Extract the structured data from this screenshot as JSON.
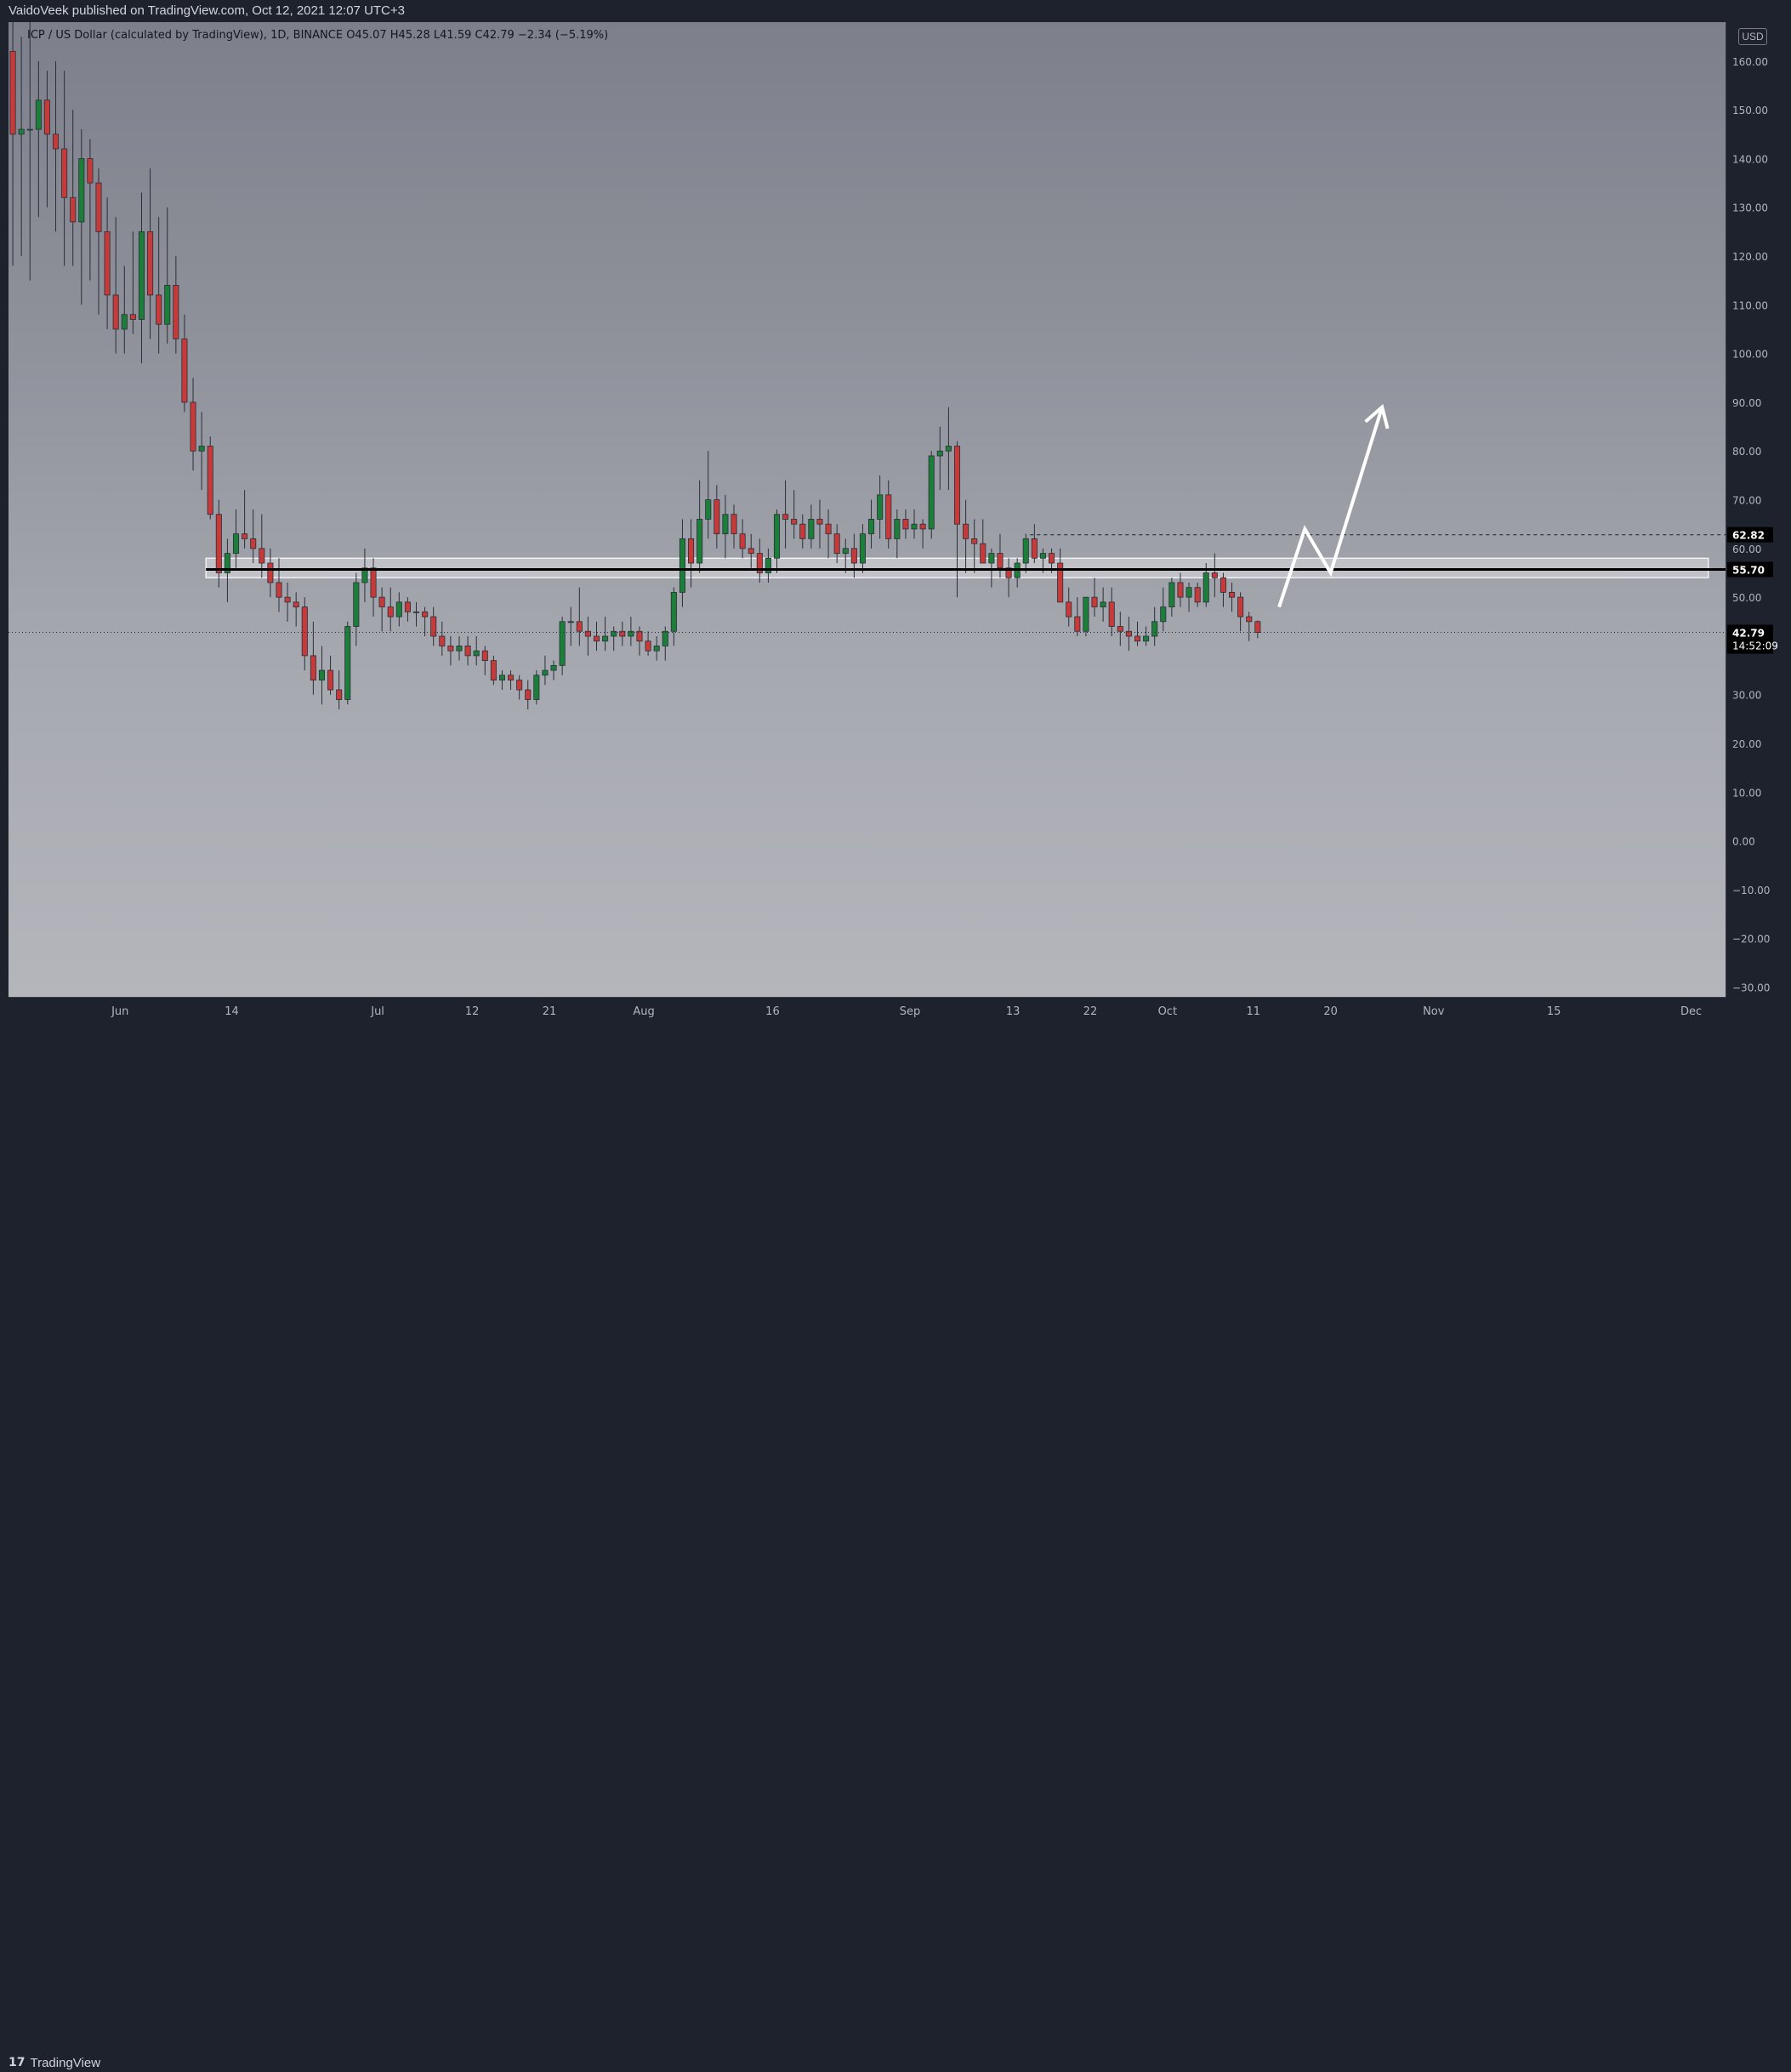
{
  "header": {
    "publisher_line": "VaidoVeek published on TradingView.com, Oct 12, 2021 12:07 UTC+3"
  },
  "symbol": {
    "info_line": "ICP / US Dollar (calculated by TradingView), 1D, BINANCE  O45.07  H45.28  L41.59  C42.79  −2.34 (−5.19%)"
  },
  "axis": {
    "currency": "USD"
  },
  "footer": {
    "brand": "TradingView"
  },
  "colors": {
    "up": "#1b7f3a",
    "down": "#c63a3a",
    "wick": "#2a2e39",
    "level_line": "#000000",
    "arrow": "#ffffff"
  },
  "chart_data": {
    "type": "candlestick",
    "title": "ICP / US Dollar (calculated by TradingView), 1D, BINANCE",
    "ylim": [
      -32,
      168
    ],
    "y_ticks": [
      160,
      150,
      140,
      130,
      120,
      110,
      100,
      90,
      80,
      70,
      60,
      50,
      40,
      30,
      20,
      10,
      0,
      -10,
      -20,
      -30
    ],
    "y_tick_labels": [
      "160.00",
      "150.00",
      "140.00",
      "130.00",
      "120.00",
      "110.00",
      "100.00",
      "90.00",
      "80.00",
      "70.00",
      "60.00",
      "50.00",
      "40.00",
      "30.00",
      "20.00",
      "10.00",
      "0.00",
      "−10.00",
      "−20.00",
      "−30.00"
    ],
    "x_start": "2021-05-19",
    "x_end": "2021-12-05",
    "x_tick_labels": [
      {
        "date": "2021-06-01",
        "label": "Jun"
      },
      {
        "date": "2021-06-14",
        "label": "14"
      },
      {
        "date": "2021-07-01",
        "label": "Jul"
      },
      {
        "date": "2021-07-12",
        "label": "12"
      },
      {
        "date": "2021-07-21",
        "label": "21"
      },
      {
        "date": "2021-08-01",
        "label": "Aug"
      },
      {
        "date": "2021-08-16",
        "label": "16"
      },
      {
        "date": "2021-09-01",
        "label": "Sep"
      },
      {
        "date": "2021-09-13",
        "label": "13"
      },
      {
        "date": "2021-09-22",
        "label": "22"
      },
      {
        "date": "2021-10-01",
        "label": "Oct"
      },
      {
        "date": "2021-10-11",
        "label": "11"
      },
      {
        "date": "2021-10-20",
        "label": "20"
      },
      {
        "date": "2021-11-01",
        "label": "Nov"
      },
      {
        "date": "2021-11-15",
        "label": "15"
      },
      {
        "date": "2021-12-01",
        "label": "Dec"
      }
    ],
    "first_candle_date": "2021-05-19",
    "candles": [
      [
        162,
        168,
        118,
        145
      ],
      [
        145,
        165,
        120,
        146
      ],
      [
        146,
        168,
        115,
        146
      ],
      [
        146,
        160,
        128,
        152
      ],
      [
        152,
        158,
        130,
        145
      ],
      [
        145,
        160,
        125,
        142
      ],
      [
        142,
        158,
        118,
        132
      ],
      [
        132,
        150,
        118,
        127
      ],
      [
        127,
        146,
        110,
        140
      ],
      [
        140,
        144,
        115,
        135
      ],
      [
        135,
        138,
        108,
        125
      ],
      [
        125,
        132,
        105,
        112
      ],
      [
        112,
        128,
        100,
        105
      ],
      [
        105,
        118,
        100,
        108
      ],
      [
        108,
        125,
        104,
        107
      ],
      [
        107,
        133,
        98,
        125
      ],
      [
        125,
        138,
        103,
        112
      ],
      [
        112,
        128,
        100,
        106
      ],
      [
        106,
        130,
        102,
        114
      ],
      [
        114,
        120,
        100,
        103
      ],
      [
        103,
        108,
        88,
        90
      ],
      [
        90,
        95,
        76,
        80
      ],
      [
        80,
        88,
        72,
        81
      ],
      [
        81,
        83,
        66,
        67
      ],
      [
        67,
        70,
        52,
        55
      ],
      [
        55,
        62,
        49,
        59
      ],
      [
        59,
        68,
        56,
        63
      ],
      [
        63,
        72,
        60,
        62
      ],
      [
        62,
        68,
        57,
        60
      ],
      [
        60,
        67,
        54,
        57
      ],
      [
        57,
        60,
        50,
        53
      ],
      [
        53,
        58,
        47,
        50
      ],
      [
        50,
        53,
        45,
        49
      ],
      [
        49,
        51,
        44,
        48
      ],
      [
        48,
        50,
        35,
        38
      ],
      [
        38,
        45,
        30,
        33
      ],
      [
        33,
        40,
        28,
        35
      ],
      [
        35,
        38,
        30,
        31
      ],
      [
        31,
        35,
        27,
        29
      ],
      [
        29,
        45,
        28,
        44
      ],
      [
        44,
        55,
        40,
        53
      ],
      [
        53,
        60,
        49,
        56
      ],
      [
        56,
        58,
        46,
        50
      ],
      [
        50,
        52,
        43,
        48
      ],
      [
        48,
        52,
        43,
        46
      ],
      [
        46,
        51,
        44,
        49
      ],
      [
        49,
        50,
        45,
        47
      ],
      [
        47,
        49,
        44,
        47
      ],
      [
        47,
        48,
        42,
        46
      ],
      [
        46,
        48,
        40,
        42
      ],
      [
        42,
        45,
        38,
        40
      ],
      [
        40,
        42,
        36,
        39
      ],
      [
        39,
        42,
        37,
        40
      ],
      [
        40,
        42,
        36,
        38
      ],
      [
        38,
        42,
        36,
        39
      ],
      [
        39,
        40,
        34,
        37
      ],
      [
        37,
        38,
        32,
        33
      ],
      [
        33,
        35,
        31,
        34
      ],
      [
        34,
        35,
        31,
        33
      ],
      [
        33,
        34,
        29,
        31
      ],
      [
        31,
        33,
        27,
        29
      ],
      [
        29,
        35,
        28,
        34
      ],
      [
        34,
        38,
        32,
        35
      ],
      [
        35,
        37,
        33,
        36
      ],
      [
        36,
        46,
        34,
        45
      ],
      [
        45,
        48,
        40,
        45
      ],
      [
        45,
        52,
        40,
        43
      ],
      [
        43,
        46,
        38,
        42
      ],
      [
        42,
        45,
        39,
        41
      ],
      [
        41,
        46,
        39,
        42
      ],
      [
        42,
        44,
        39,
        43
      ],
      [
        43,
        45,
        40,
        42
      ],
      [
        42,
        46,
        40,
        43
      ],
      [
        43,
        44,
        38,
        41
      ],
      [
        41,
        43,
        38,
        39
      ],
      [
        39,
        42,
        37,
        40
      ],
      [
        40,
        44,
        37,
        43
      ],
      [
        43,
        52,
        40,
        51
      ],
      [
        51,
        66,
        48,
        62
      ],
      [
        62,
        66,
        52,
        57
      ],
      [
        57,
        74,
        55,
        66
      ],
      [
        66,
        80,
        62,
        70
      ],
      [
        70,
        73,
        60,
        63
      ],
      [
        63,
        71,
        58,
        67
      ],
      [
        67,
        69,
        60,
        63
      ],
      [
        63,
        66,
        58,
        60
      ],
      [
        60,
        63,
        56,
        59
      ],
      [
        59,
        62,
        53,
        55
      ],
      [
        55,
        60,
        53,
        58
      ],
      [
        58,
        68,
        55,
        67
      ],
      [
        67,
        74,
        60,
        66
      ],
      [
        66,
        72,
        62,
        65
      ],
      [
        65,
        67,
        60,
        62
      ],
      [
        62,
        69,
        60,
        66
      ],
      [
        66,
        70,
        60,
        65
      ],
      [
        65,
        68,
        58,
        63
      ],
      [
        63,
        65,
        57,
        59
      ],
      [
        59,
        62,
        55,
        60
      ],
      [
        60,
        63,
        54,
        57
      ],
      [
        57,
        65,
        55,
        63
      ],
      [
        63,
        70,
        60,
        66
      ],
      [
        66,
        75,
        62,
        71
      ],
      [
        71,
        74,
        60,
        62
      ],
      [
        62,
        68,
        58,
        66
      ],
      [
        66,
        68,
        62,
        64
      ],
      [
        64,
        68,
        62,
        65
      ],
      [
        65,
        66,
        60,
        64
      ],
      [
        64,
        80,
        62,
        79
      ],
      [
        79,
        85,
        72,
        80
      ],
      [
        80,
        89,
        72,
        81
      ],
      [
        81,
        82,
        50,
        65
      ],
      [
        65,
        70,
        55,
        62
      ],
      [
        62,
        66,
        55,
        61
      ],
      [
        61,
        66,
        57,
        57
      ],
      [
        57,
        60,
        52,
        59
      ],
      [
        59,
        63,
        54,
        56
      ],
      [
        56,
        58,
        50,
        54
      ],
      [
        54,
        58,
        52,
        57
      ],
      [
        57,
        63,
        55,
        62
      ],
      [
        62,
        65,
        57,
        58
      ],
      [
        58,
        60,
        55,
        59
      ],
      [
        59,
        60,
        55,
        57
      ],
      [
        57,
        60,
        50,
        49
      ],
      [
        49,
        52,
        44,
        46
      ],
      [
        46,
        50,
        42,
        43
      ],
      [
        43,
        50,
        42,
        50
      ],
      [
        50,
        54,
        46,
        48
      ],
      [
        48,
        52,
        45,
        49
      ],
      [
        49,
        52,
        42,
        44
      ],
      [
        44,
        47,
        40,
        43
      ],
      [
        43,
        46,
        39,
        42
      ],
      [
        42,
        45,
        40,
        41
      ],
      [
        41,
        44,
        40,
        42
      ],
      [
        42,
        48,
        40,
        45
      ],
      [
        45,
        52,
        43,
        48
      ],
      [
        48,
        54,
        46,
        53
      ],
      [
        53,
        55,
        48,
        50
      ],
      [
        50,
        53,
        47,
        52
      ],
      [
        52,
        53,
        48,
        49
      ],
      [
        49,
        57,
        48,
        55
      ],
      [
        55,
        59,
        50,
        54
      ],
      [
        54,
        55,
        48,
        51
      ],
      [
        51,
        53,
        47,
        50
      ],
      [
        50,
        51,
        43,
        46
      ],
      [
        46,
        47,
        41,
        45
      ],
      [
        45,
        45.28,
        41.59,
        42.79
      ]
    ],
    "levels": [
      {
        "price": 62.82,
        "style": "dashed",
        "label": "62.82",
        "from_date": "2021-09-15"
      },
      {
        "price": 55.7,
        "style": "solid",
        "label": "55.70",
        "from_date": "2021-06-11"
      }
    ],
    "zone": {
      "top": 58,
      "bottom": 54,
      "from_date": "2021-06-11",
      "to_date": "2021-12-03"
    },
    "last_price": {
      "price": 42.79,
      "label": "42.79",
      "countdown": "14:52:09"
    },
    "projection": [
      {
        "date": "2021-10-14",
        "price": 48
      },
      {
        "date": "2021-10-17",
        "price": 64
      },
      {
        "date": "2021-10-20",
        "price": 55
      },
      {
        "date": "2021-10-26",
        "price": 89
      }
    ]
  }
}
